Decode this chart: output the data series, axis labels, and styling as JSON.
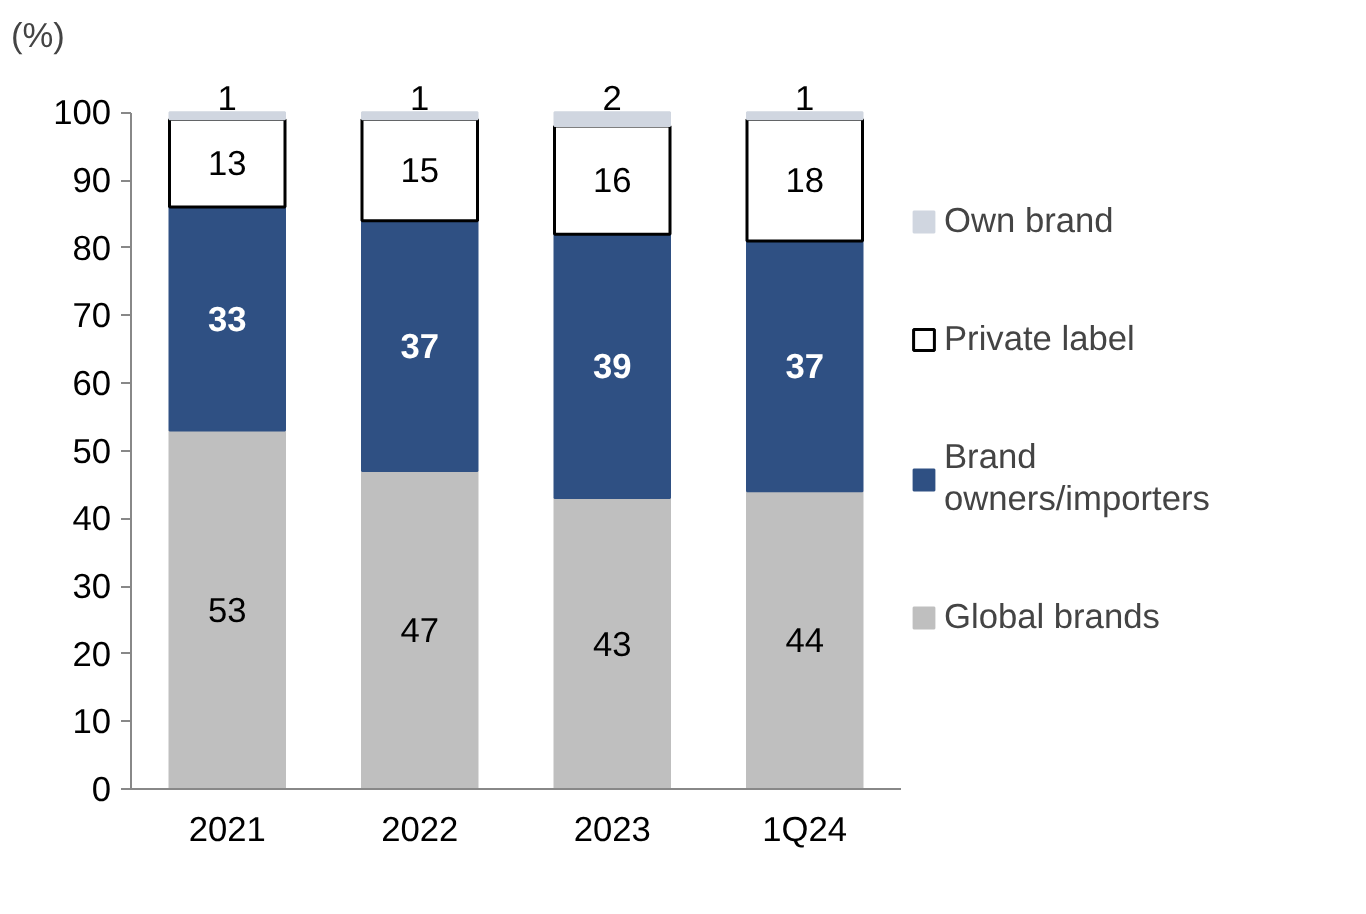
{
  "chart_data": {
    "type": "bar",
    "stacked": true,
    "ylabel": "(%)",
    "categories": [
      "2021",
      "2022",
      "2023",
      "1Q24"
    ],
    "series": [
      {
        "name": "Global brands",
        "color": "#bfbfbf",
        "values": [
          53,
          47,
          43,
          44
        ]
      },
      {
        "name": "Brand owners/importers",
        "color": "#2f5083",
        "values": [
          33,
          37,
          39,
          37
        ]
      },
      {
        "name": "Private label",
        "color": "#ffffff",
        "values": [
          13,
          15,
          16,
          18
        ]
      },
      {
        "name": "Own brand",
        "color": "#d0d6e0",
        "values": [
          1,
          1,
          2,
          1
        ]
      }
    ],
    "ylim": [
      0,
      100
    ],
    "yticks": [
      0,
      10,
      20,
      30,
      40,
      50,
      60,
      70,
      80,
      90,
      100
    ],
    "data_labels": true,
    "legend": "right",
    "grid": false
  }
}
